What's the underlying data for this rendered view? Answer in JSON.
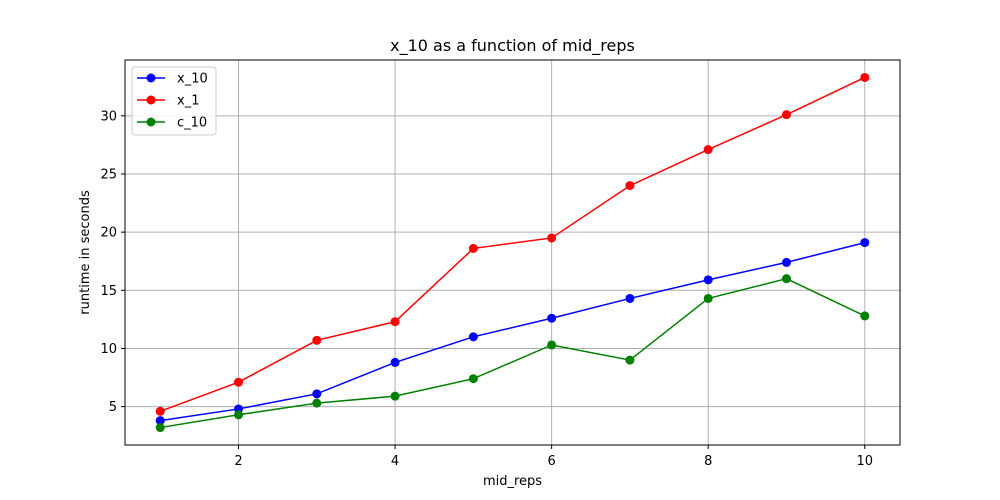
{
  "chart_data": {
    "type": "line",
    "title": "x_10 as a function of mid_reps",
    "xlabel": "mid_reps",
    "ylabel": "runtime in seconds",
    "x": [
      1,
      2,
      3,
      4,
      5,
      6,
      7,
      8,
      9,
      10
    ],
    "xlim": [
      0.55,
      10.45
    ],
    "ylim": [
      1.7,
      34.8
    ],
    "xticks": [
      2,
      4,
      6,
      8,
      10
    ],
    "yticks": [
      5,
      10,
      15,
      20,
      25,
      30
    ],
    "grid": true,
    "legend_position": "top-left",
    "series": [
      {
        "name": "x_10",
        "color": "#0000ff",
        "values": [
          3.8,
          4.8,
          6.1,
          8.8,
          11.0,
          12.6,
          14.3,
          15.9,
          17.4,
          19.1
        ]
      },
      {
        "name": "x_1",
        "color": "#ff0000",
        "values": [
          4.6,
          7.1,
          10.7,
          12.3,
          18.6,
          19.5,
          24.0,
          27.1,
          30.1,
          33.3
        ]
      },
      {
        "name": "c_10",
        "color": "#008000",
        "values": [
          3.2,
          4.3,
          5.3,
          5.9,
          7.4,
          10.3,
          9.0,
          14.3,
          16.0,
          12.8
        ]
      }
    ]
  }
}
